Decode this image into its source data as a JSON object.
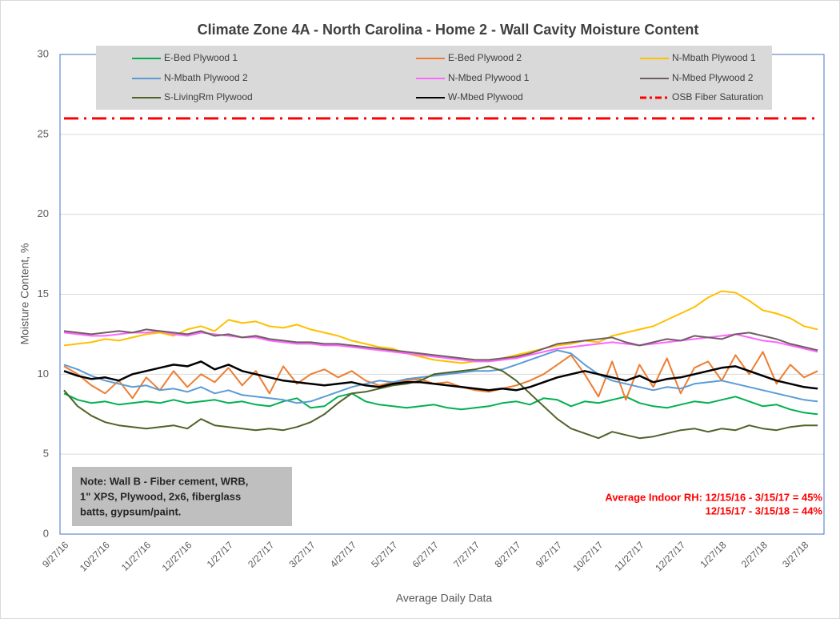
{
  "chart_data": {
    "type": "line",
    "title": "Climate Zone 4A - North Carolina - Home 2 - Wall Cavity Moisture Content",
    "y_label": "Moisture Content, %",
    "x_label": "Average Daily Data",
    "note": [
      "Note: Wall B - Fiber cement, WRB,",
      "1\" XPS, Plywood, 2x6, fiberglass",
      "batts, gypsum/paint."
    ],
    "annotation": [
      "Average Indoor RH: 12/15/16 - 3/15/17 = 45%",
      "12/15/17 - 3/15/18 = 44%"
    ],
    "ylim": [
      0,
      30
    ],
    "yticks": [
      0,
      5,
      10,
      15,
      20,
      25,
      30
    ],
    "grid": true,
    "categories": [
      "9/27/16",
      null,
      null,
      "10/27/16",
      null,
      null,
      "11/27/16",
      null,
      null,
      "12/27/16",
      null,
      null,
      "1/27/17",
      null,
      null,
      "2/27/17",
      null,
      null,
      "3/27/17",
      null,
      null,
      "4/27/17",
      null,
      null,
      "5/27/17",
      null,
      null,
      "6/27/17",
      null,
      null,
      "7/27/17",
      null,
      null,
      "8/27/17",
      null,
      null,
      "9/27/17",
      null,
      null,
      "10/27/17",
      null,
      null,
      "11/27/17",
      null,
      null,
      "12/27/17",
      null,
      null,
      "1/27/18",
      null,
      null,
      "2/27/18",
      null,
      null,
      "3/27/18",
      null
    ],
    "series": [
      {
        "name": "E-Bed Plywood 1",
        "color": "#00b050",
        "values": [
          8.8,
          8.4,
          8.2,
          8.3,
          8.1,
          8.2,
          8.3,
          8.2,
          8.4,
          8.2,
          8.3,
          8.4,
          8.2,
          8.3,
          8.1,
          8.0,
          8.3,
          8.5,
          7.9,
          8.0,
          8.6,
          8.8,
          8.3,
          8.1,
          8.0,
          7.9,
          8.0,
          8.1,
          7.9,
          7.8,
          7.9,
          8.0,
          8.2,
          8.3,
          8.1,
          8.5,
          8.4,
          8.0,
          8.3,
          8.2,
          8.4,
          8.6,
          8.2,
          8.0,
          7.9,
          8.1,
          8.3,
          8.2,
          8.4,
          8.6,
          8.3,
          8.0,
          8.1,
          7.8,
          7.6,
          7.5
        ]
      },
      {
        "name": "E-Bed Plywood 2",
        "color": "#ed7d31",
        "values": [
          10.5,
          10.0,
          9.3,
          8.8,
          9.6,
          8.5,
          9.8,
          9.0,
          10.2,
          9.2,
          10.0,
          9.5,
          10.4,
          9.3,
          10.2,
          8.8,
          10.5,
          9.4,
          10.0,
          10.3,
          9.8,
          10.2,
          9.6,
          9.3,
          9.5,
          9.6,
          9.7,
          9.4,
          9.5,
          9.2,
          9.0,
          8.9,
          9.1,
          9.3,
          9.6,
          10.0,
          10.6,
          11.2,
          10.0,
          8.6,
          10.8,
          8.4,
          10.6,
          9.2,
          11.0,
          8.8,
          10.4,
          10.8,
          9.6,
          11.2,
          10.0,
          11.4,
          9.4,
          10.6,
          9.8,
          10.2
        ]
      },
      {
        "name": "N-Mbath Plywood 1",
        "color": "#ffc000",
        "values": [
          11.8,
          11.9,
          12.0,
          12.2,
          12.1,
          12.3,
          12.5,
          12.6,
          12.4,
          12.8,
          13.0,
          12.7,
          13.4,
          13.2,
          13.3,
          13.0,
          12.9,
          13.1,
          12.8,
          12.6,
          12.4,
          12.1,
          11.9,
          11.7,
          11.6,
          11.3,
          11.1,
          10.9,
          10.8,
          10.7,
          10.8,
          10.8,
          11.0,
          11.2,
          11.4,
          11.6,
          11.8,
          11.9,
          12.1,
          12.0,
          12.4,
          12.6,
          12.8,
          13.0,
          13.4,
          13.8,
          14.2,
          14.8,
          15.2,
          15.1,
          14.6,
          14.0,
          13.8,
          13.5,
          13.0,
          12.8
        ]
      },
      {
        "name": "N-Mbath Plywood 2",
        "color": "#5b9bd5",
        "values": [
          10.6,
          10.3,
          9.9,
          9.6,
          9.4,
          9.2,
          9.3,
          9.0,
          9.1,
          8.9,
          9.2,
          8.8,
          9.0,
          8.7,
          8.6,
          8.5,
          8.4,
          8.2,
          8.3,
          8.6,
          8.9,
          9.2,
          9.4,
          9.6,
          9.5,
          9.7,
          9.8,
          9.9,
          10.0,
          10.1,
          10.2,
          10.2,
          10.3,
          10.6,
          10.9,
          11.2,
          11.5,
          11.3,
          10.6,
          10.0,
          9.6,
          9.4,
          9.2,
          9.0,
          9.2,
          9.1,
          9.4,
          9.5,
          9.6,
          9.4,
          9.2,
          9.0,
          8.8,
          8.6,
          8.4,
          8.3
        ]
      },
      {
        "name": "N-Mbed Plywood 1",
        "color": "#ff66ff",
        "values": [
          12.6,
          12.5,
          12.4,
          12.4,
          12.5,
          12.6,
          12.6,
          12.7,
          12.5,
          12.4,
          12.6,
          12.5,
          12.4,
          12.3,
          12.3,
          12.1,
          12.0,
          11.9,
          11.9,
          11.8,
          11.8,
          11.7,
          11.6,
          11.5,
          11.4,
          11.3,
          11.2,
          11.1,
          11.0,
          10.9,
          10.8,
          10.8,
          10.9,
          11.0,
          11.2,
          11.4,
          11.6,
          11.7,
          11.8,
          11.9,
          12.0,
          11.9,
          11.8,
          11.9,
          12.0,
          12.1,
          12.2,
          12.3,
          12.4,
          12.5,
          12.3,
          12.1,
          12.0,
          11.8,
          11.6,
          11.4
        ]
      },
      {
        "name": "N-Mbed Plywood 2",
        "color": "#6e5f63",
        "values": [
          12.7,
          12.6,
          12.5,
          12.6,
          12.7,
          12.6,
          12.8,
          12.7,
          12.6,
          12.5,
          12.7,
          12.4,
          12.5,
          12.3,
          12.4,
          12.2,
          12.1,
          12.0,
          12.0,
          11.9,
          11.9,
          11.8,
          11.7,
          11.6,
          11.5,
          11.4,
          11.3,
          11.2,
          11.1,
          11.0,
          10.9,
          10.9,
          11.0,
          11.1,
          11.3,
          11.6,
          11.9,
          12.0,
          12.1,
          12.2,
          12.3,
          12.0,
          11.8,
          12.0,
          12.2,
          12.1,
          12.4,
          12.3,
          12.2,
          12.5,
          12.6,
          12.4,
          12.2,
          11.9,
          11.7,
          11.5
        ]
      },
      {
        "name": "S-LivingRm Plywood",
        "color": "#4f6228",
        "values": [
          9.0,
          8.0,
          7.4,
          7.0,
          6.8,
          6.7,
          6.6,
          6.7,
          6.8,
          6.6,
          7.2,
          6.8,
          6.7,
          6.6,
          6.5,
          6.6,
          6.5,
          6.7,
          7.0,
          7.5,
          8.2,
          8.8,
          8.9,
          9.1,
          9.3,
          9.4,
          9.6,
          10.0,
          10.1,
          10.2,
          10.3,
          10.5,
          10.2,
          9.6,
          8.8,
          8.0,
          7.2,
          6.6,
          6.3,
          6.0,
          6.4,
          6.2,
          6.0,
          6.1,
          6.3,
          6.5,
          6.6,
          6.4,
          6.6,
          6.5,
          6.8,
          6.6,
          6.5,
          6.7,
          6.8,
          6.8
        ]
      },
      {
        "name": "W-Mbed Plywood",
        "color": "#000000",
        "values": [
          10.2,
          9.9,
          9.7,
          9.8,
          9.6,
          10.0,
          10.2,
          10.4,
          10.6,
          10.5,
          10.8,
          10.3,
          10.6,
          10.2,
          10.0,
          9.8,
          9.6,
          9.5,
          9.4,
          9.3,
          9.4,
          9.5,
          9.3,
          9.2,
          9.4,
          9.5,
          9.5,
          9.4,
          9.3,
          9.2,
          9.1,
          9.0,
          9.1,
          9.0,
          9.2,
          9.5,
          9.8,
          10.0,
          10.2,
          10.0,
          9.8,
          9.6,
          9.9,
          9.5,
          9.7,
          9.8,
          10.0,
          10.2,
          10.4,
          10.5,
          10.2,
          9.9,
          9.6,
          9.4,
          9.2,
          9.1
        ]
      },
      {
        "name": "OSB Fiber Saturation",
        "color": "#ff0000",
        "dash": "dash-dot",
        "values": [
          26,
          26,
          26,
          26,
          26,
          26,
          26,
          26,
          26,
          26,
          26,
          26,
          26,
          26,
          26,
          26,
          26,
          26,
          26,
          26,
          26,
          26,
          26,
          26,
          26,
          26,
          26,
          26,
          26,
          26,
          26,
          26,
          26,
          26,
          26,
          26,
          26,
          26,
          26,
          26,
          26,
          26,
          26,
          26,
          26,
          26,
          26,
          26,
          26,
          26,
          26,
          26,
          26,
          26,
          26,
          26
        ]
      }
    ]
  }
}
